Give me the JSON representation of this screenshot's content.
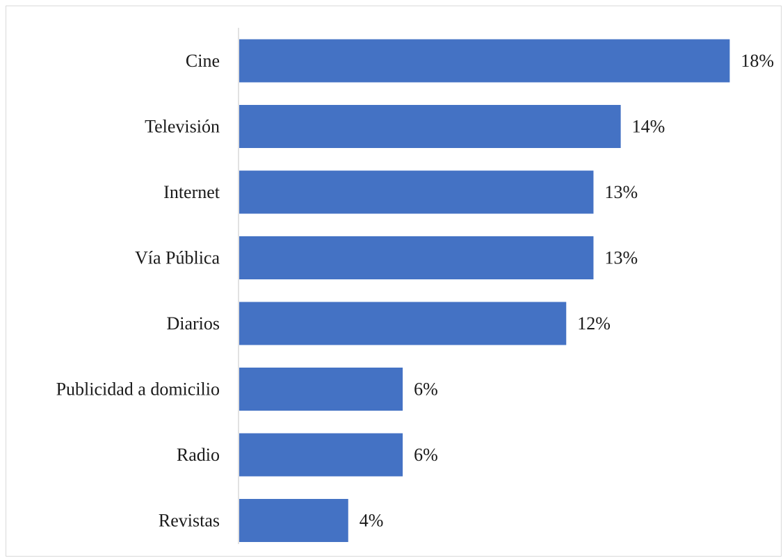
{
  "chart_data": {
    "type": "bar",
    "orientation": "horizontal",
    "categories": [
      "Cine",
      "Televisión",
      "Internet",
      "Vía Pública",
      "Diarios",
      "Publicidad a domicilio",
      "Radio",
      "Revistas"
    ],
    "values": [
      18,
      14,
      13,
      13,
      12,
      6,
      6,
      4
    ],
    "value_labels": [
      "18%",
      "14%",
      "13%",
      "13%",
      "12%",
      "6%",
      "6%",
      "4%"
    ],
    "unit": "%",
    "xlim": [
      0,
      18.5
    ],
    "grid": false,
    "legend": "none"
  },
  "colors": {
    "bar": "#4472C4",
    "axis": "#d9d9d9",
    "text": "#1a1a1a"
  }
}
